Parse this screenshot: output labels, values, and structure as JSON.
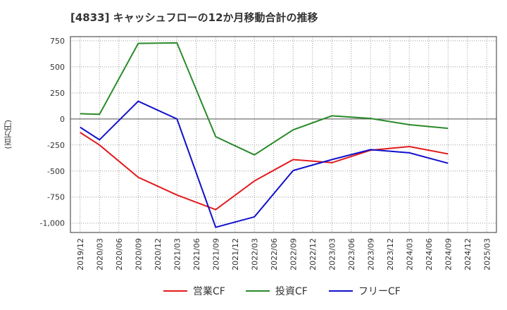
{
  "chart_data": {
    "type": "line",
    "title": "[4833]  キャッシュフローの12か月移動合計の推移",
    "ylabel": "(百万円)",
    "xlabel": "",
    "ylim": [
      -1090,
      790
    ],
    "yticks": [
      750,
      500,
      250,
      0,
      -250,
      -500,
      -750,
      -1000
    ],
    "ytick_labels": [
      "750",
      "500",
      "250",
      "0",
      "-250",
      "-500",
      "-750",
      "-1,000"
    ],
    "categories": [
      "2019/12",
      "2020/03",
      "2020/06",
      "2020/09",
      "2020/12",
      "2021/03",
      "2021/06",
      "2021/09",
      "2021/12",
      "2022/03",
      "2022/06",
      "2022/09",
      "2022/12",
      "2023/03",
      "2023/06",
      "2023/09",
      "2023/12",
      "2024/03",
      "2024/06",
      "2024/09",
      "2024/12",
      "2025/03"
    ],
    "grid": true,
    "legend_position": "bottom",
    "series": [
      {
        "name": "営業CF",
        "color": "#e31a1c",
        "values": [
          -130,
          -250,
          null,
          -560,
          null,
          -730,
          null,
          -870,
          null,
          -595,
          null,
          -390,
          null,
          -420,
          null,
          -300,
          null,
          -265,
          null,
          -335,
          null,
          null
        ]
      },
      {
        "name": "投資CF",
        "color": "#2a8a2a",
        "values": [
          50,
          45,
          null,
          725,
          null,
          730,
          null,
          -170,
          null,
          -345,
          null,
          -105,
          null,
          30,
          null,
          5,
          null,
          -55,
          null,
          -90,
          null,
          null
        ]
      },
      {
        "name": "フリーCF",
        "color": "#1010cc",
        "values": [
          -80,
          -200,
          null,
          170,
          null,
          0,
          null,
          -1040,
          null,
          -940,
          null,
          -495,
          null,
          -390,
          null,
          -295,
          null,
          -325,
          null,
          -425,
          null,
          null
        ]
      }
    ]
  }
}
